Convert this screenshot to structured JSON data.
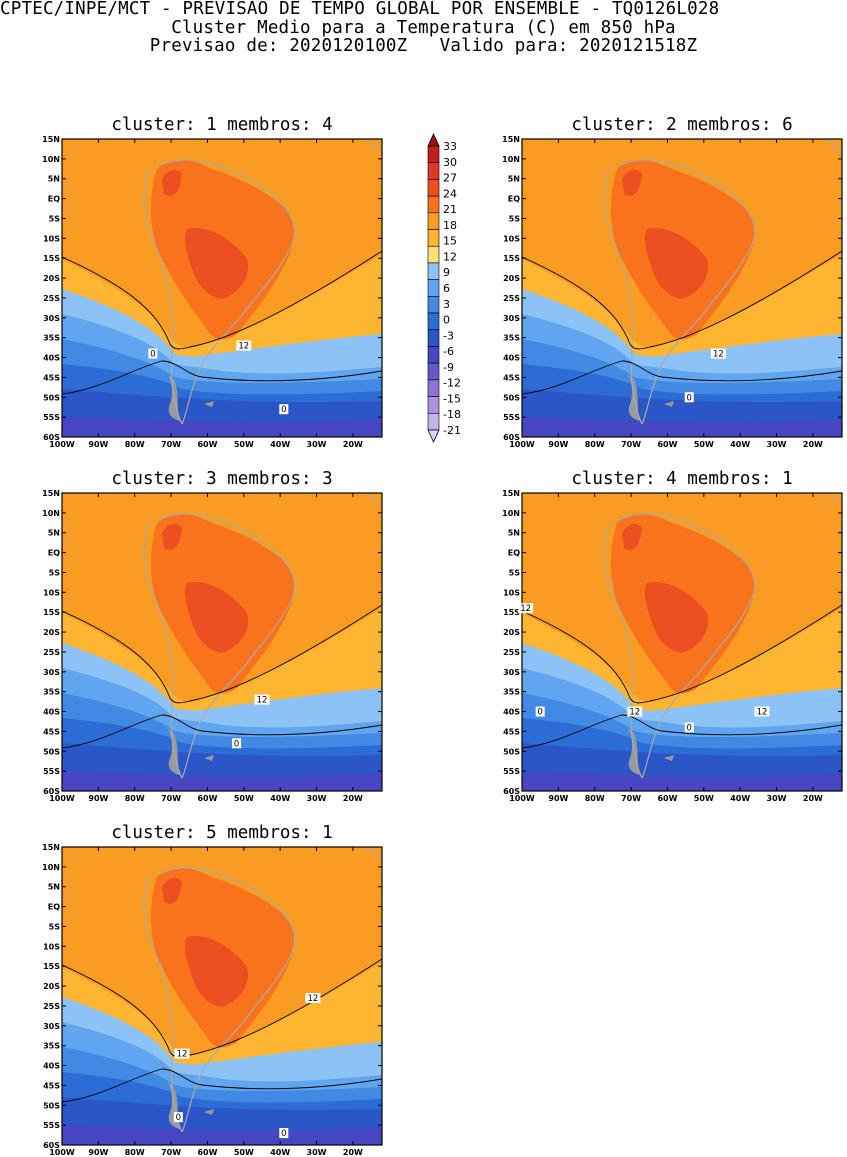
{
  "header": {
    "line1": "CPTEC/INPE/MCT - PREVISAO DE TEMPO GLOBAL POR ENSEMBLE - TQ0126L028",
    "line2": "Cluster Medio para a Temperatura (C) em 850 hPa",
    "line3": "Previsao de: 2020120100Z   Valido para: 2020121518Z"
  },
  "axes": {
    "lat_labels": [
      "15N",
      "10N",
      "5N",
      "EQ",
      "5S",
      "10S",
      "15S",
      "20S",
      "25S",
      "30S",
      "35S",
      "40S",
      "45S",
      "50S",
      "55S",
      "60S"
    ],
    "lon_labels": [
      "100W",
      "90W",
      "80W",
      "70W",
      "60W",
      "50W",
      "40W",
      "30W",
      "20W"
    ]
  },
  "colorbar": {
    "labels": [
      "33",
      "30",
      "27",
      "24",
      "21",
      "18",
      "15",
      "12",
      "9",
      "6",
      "3",
      "0",
      "-3",
      "-6",
      "-9",
      "-12",
      "-15",
      "-18",
      "-21"
    ],
    "colors": [
      "#9b1010",
      "#c41c1c",
      "#dc3a24",
      "#ec4f20",
      "#f9731d",
      "#fb9c22",
      "#fdb532",
      "#fde07a",
      "#8cc2f5",
      "#60a5ef",
      "#4189e3",
      "#2c6cd6",
      "#2a56c8",
      "#4747c4",
      "#6a58ca",
      "#8c73d6",
      "#a893e0",
      "#c4b4ec",
      "#ddd2f4"
    ]
  },
  "panels": [
    {
      "title": "cluster: 1   membros: 4",
      "contour_labels": [
        {
          "text": "0",
          "lat": -39,
          "lon": -75
        },
        {
          "text": "0",
          "lat": -53,
          "lon": -39
        },
        {
          "text": "12",
          "lat": -37,
          "lon": -50
        }
      ]
    },
    {
      "title": "cluster: 2   membros: 6",
      "contour_labels": [
        {
          "text": "0",
          "lat": -50,
          "lon": -54
        },
        {
          "text": "12",
          "lat": -39,
          "lon": -46
        }
      ]
    },
    {
      "title": "cluster: 3   membros: 3",
      "contour_labels": [
        {
          "text": "0",
          "lat": -48,
          "lon": -52
        },
        {
          "text": "12",
          "lat": -37,
          "lon": -45
        }
      ]
    },
    {
      "title": "cluster: 4   membros: 1",
      "contour_labels": [
        {
          "text": "12",
          "lat": -14,
          "lon": -99
        },
        {
          "text": "0",
          "lat": -40,
          "lon": -95
        },
        {
          "text": "12",
          "lat": -40,
          "lon": -69
        },
        {
          "text": "0",
          "lat": -44,
          "lon": -54
        },
        {
          "text": "12",
          "lat": -40,
          "lon": -34
        }
      ]
    },
    {
      "title": "cluster: 5   membros: 1",
      "contour_labels": [
        {
          "text": "12",
          "lat": -23,
          "lon": -31
        },
        {
          "text": "12",
          "lat": -37,
          "lon": -67
        },
        {
          "text": "0",
          "lat": -53,
          "lon": -68
        },
        {
          "text": "0",
          "lat": -57,
          "lon": -39
        }
      ]
    }
  ]
}
